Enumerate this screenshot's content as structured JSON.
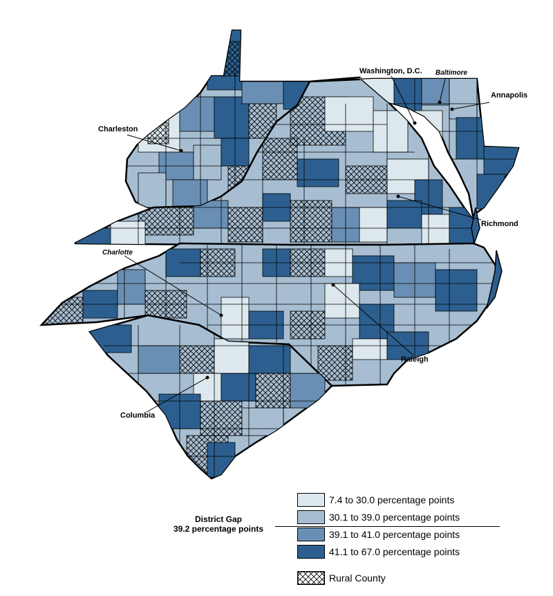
{
  "colors": {
    "class1": "#dde8ee",
    "class2": "#a7bed2",
    "class3": "#6a8fb4",
    "class4": "#2c5f8f",
    "outline": "#000000",
    "rural_hatch": "#000000"
  },
  "cities": [
    {
      "id": "charleston",
      "name": "Charleston",
      "italic": false
    },
    {
      "id": "washington",
      "name": "Washington, D.C.",
      "italic": false
    },
    {
      "id": "baltimore",
      "name": "Baltimore",
      "italic": true
    },
    {
      "id": "annapolis",
      "name": "Annapolis",
      "italic": false
    },
    {
      "id": "richmond",
      "name": "Richmond",
      "italic": false
    },
    {
      "id": "charlotte",
      "name": "Charlotte",
      "italic": true
    },
    {
      "id": "raleigh",
      "name": "Raleigh",
      "italic": false
    },
    {
      "id": "columbia",
      "name": "Columbia",
      "italic": false
    }
  ],
  "legend": {
    "title_line1": "District Gap",
    "title_line2": "39.2 percentage points",
    "items": [
      {
        "label": "7.4 to 30.0 percentage points",
        "color_key": "class1"
      },
      {
        "label": "30.1 to 39.0 percentage points",
        "color_key": "class2"
      },
      {
        "label": "39.1 to 41.0 percentage points",
        "color_key": "class3"
      },
      {
        "label": "41.1 to 67.0 percentage points",
        "color_key": "class4"
      }
    ],
    "rural_label": "Rural County"
  }
}
